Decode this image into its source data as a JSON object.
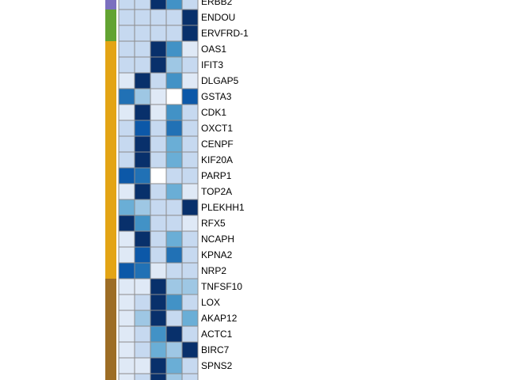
{
  "colors": {
    "background": "#ffffff",
    "cell_border": "#8c8c8c",
    "groups": {
      "purple": "#7b6fbf",
      "green": "#62a332",
      "orange": "#e3a415",
      "brown": "#9d6d25"
    },
    "scale": [
      "#ffffff",
      "#dfe9f6",
      "#c6d9f0",
      "#9ec7e4",
      "#6aaed6",
      "#4292c6",
      "#2171b5",
      "#0c58a8",
      "#08306b"
    ]
  },
  "chart_data": {
    "type": "heatmap",
    "title": "",
    "xlabel": "",
    "ylabel": "",
    "columns": 5,
    "value_scale": [
      0,
      8
    ],
    "rows": [
      {
        "gene": "ERBB2",
        "group": "purple",
        "values": [
          2,
          2,
          8,
          5,
          2
        ]
      },
      {
        "gene": "ENDOU",
        "group": "green",
        "values": [
          2,
          2,
          2,
          2,
          8
        ]
      },
      {
        "gene": "ERVFRD-1",
        "group": "green",
        "values": [
          2,
          2,
          2,
          2,
          8
        ]
      },
      {
        "gene": "OAS1",
        "group": "orange",
        "values": [
          2,
          2,
          8,
          5,
          1
        ]
      },
      {
        "gene": "IFIT3",
        "group": "orange",
        "values": [
          2,
          2,
          8,
          3,
          2
        ]
      },
      {
        "gene": "DLGAP5",
        "group": "orange",
        "values": [
          1,
          8,
          2,
          5,
          1
        ]
      },
      {
        "gene": "GSTA3",
        "group": "orange",
        "values": [
          6,
          3,
          1,
          0,
          7
        ]
      },
      {
        "gene": "CDK1",
        "group": "orange",
        "values": [
          1,
          8,
          1,
          5,
          2
        ]
      },
      {
        "gene": "OXCT1",
        "group": "orange",
        "values": [
          2,
          7,
          2,
          6,
          2
        ]
      },
      {
        "gene": "CENPF",
        "group": "orange",
        "values": [
          2,
          8,
          2,
          4,
          2
        ]
      },
      {
        "gene": "KIF20A",
        "group": "orange",
        "values": [
          2,
          8,
          2,
          4,
          2
        ]
      },
      {
        "gene": "PARP1",
        "group": "orange",
        "values": [
          7,
          6,
          0,
          2,
          2
        ]
      },
      {
        "gene": "TOP2A",
        "group": "orange",
        "values": [
          1,
          8,
          2,
          4,
          1
        ]
      },
      {
        "gene": "PLEKHH1",
        "group": "orange",
        "values": [
          4,
          3,
          2,
          2,
          8
        ]
      },
      {
        "gene": "RFX5",
        "group": "orange",
        "values": [
          8,
          5,
          2,
          2,
          1
        ]
      },
      {
        "gene": "NCAPH",
        "group": "orange",
        "values": [
          1,
          8,
          2,
          4,
          2
        ]
      },
      {
        "gene": "KPNA2",
        "group": "orange",
        "values": [
          1,
          7,
          2,
          6,
          2
        ]
      },
      {
        "gene": "NRP2",
        "group": "orange",
        "values": [
          7,
          6,
          1,
          2,
          2
        ]
      },
      {
        "gene": "TNFSF10",
        "group": "brown",
        "values": [
          1,
          1,
          8,
          3,
          3
        ]
      },
      {
        "gene": "LOX",
        "group": "brown",
        "values": [
          1,
          2,
          8,
          5,
          2
        ]
      },
      {
        "gene": "AKAP12",
        "group": "brown",
        "values": [
          1,
          3,
          8,
          2,
          4
        ]
      },
      {
        "gene": "ACTC1",
        "group": "brown",
        "values": [
          1,
          2,
          5,
          8,
          2
        ]
      },
      {
        "gene": "BIRC7",
        "group": "brown",
        "values": [
          1,
          2,
          4,
          3,
          8
        ]
      },
      {
        "gene": "SPNS2",
        "group": "brown",
        "values": [
          1,
          1,
          8,
          4,
          2
        ]
      },
      {
        "gene": "",
        "group": "brown",
        "values": [
          1,
          2,
          8,
          3,
          2
        ]
      }
    ]
  }
}
